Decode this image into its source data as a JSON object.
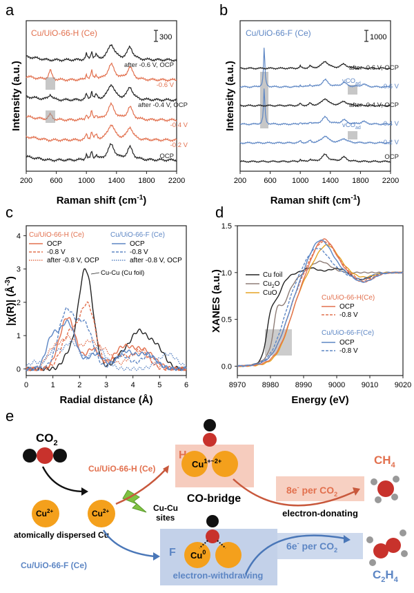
{
  "colors": {
    "orange": "#e2704e",
    "blue": "#5d86c4",
    "black": "#222222",
    "gold": "#e6a323",
    "brown": "#8d7c76",
    "grey": "#aaaaaa",
    "cu": "#f4a01c",
    "red": "#c8322c"
  },
  "panels": {
    "a": "a",
    "b": "b",
    "c": "c",
    "d": "d",
    "e": "e"
  },
  "chart_data": [
    {
      "id": "a",
      "type": "line",
      "title": "Cu/UiO-66-H (Ce)",
      "xlabel": "Raman shift (cm-1)",
      "xlabel_base": "Raman shift (cm",
      "xlabel_sup": "-1",
      "xlabel_end": ")",
      "ylabel": "Intensity (a.u.)",
      "xlim": [
        200,
        2200
      ],
      "xticks": [
        "200",
        "600",
        "1000",
        "1400",
        "1800",
        "2200"
      ],
      "scale_bar": "300",
      "series": [
        {
          "name": "OCP",
          "color": "black",
          "offset": 0
        },
        {
          "name": "-0.2 V",
          "color": "orange",
          "offset": 1
        },
        {
          "name": "-0.4 V",
          "color": "orange",
          "offset": 2
        },
        {
          "name": "after -0.4 V, OCP",
          "color": "black",
          "offset": 3
        },
        {
          "name": "-0.6 V",
          "color": "orange",
          "offset": 4
        },
        {
          "name": "after -0.6 V, OCP",
          "color": "black",
          "offset": 5
        }
      ],
      "peaks_cm": [
        1000,
        1070,
        1130,
        1330,
        1580
      ],
      "cu_o_band_cm": 520
    },
    {
      "id": "b",
      "type": "line",
      "title": "Cu/UiO-66-F (Ce)",
      "xlabel": "Raman shift (cm-1)",
      "xlabel_base": "Raman shift (cm",
      "xlabel_sup": "-1",
      "xlabel_end": ")",
      "ylabel": "Intensity (a.u.)",
      "xlim": [
        200,
        2200
      ],
      "xticks": [
        "200",
        "600",
        "1000",
        "1400",
        "1800",
        "2200"
      ],
      "scale_bar": "1000",
      "series": [
        {
          "name": "OCP",
          "color": "black",
          "offset": 0
        },
        {
          "name": "-0.2 V",
          "color": "blue",
          "offset": 1
        },
        {
          "name": "-0.4 V",
          "color": "blue",
          "offset": 2
        },
        {
          "name": "after -0.4 V, OCP",
          "color": "black",
          "offset": 3
        },
        {
          "name": "-0.6 V",
          "color": "blue",
          "offset": 4
        },
        {
          "name": "after -0.6 V, OCP",
          "color": "black",
          "offset": 5
        }
      ],
      "annot": {
        "vco_base": "vCO",
        "vco_sub": "ad"
      },
      "peak_cm": 520,
      "vco_cm": 1840
    },
    {
      "id": "c",
      "type": "line",
      "xlabel": "Radial distance (Å)",
      "ylabel": "|χ(R)| (Å-3)",
      "ylabel_base": "|χ(R)| (Å",
      "ylabel_sup": "-3",
      "ylabel_end": ")",
      "xlim": [
        0,
        6
      ],
      "ylim": [
        -0.2,
        4.3
      ],
      "xticks": [
        "0",
        "1",
        "2",
        "3",
        "4",
        "5",
        "6"
      ],
      "yticks": [
        "0",
        "1",
        "2",
        "3",
        "4"
      ],
      "legend_h_title": "Cu/UiO-66-H (Ce)",
      "legend_f_title": "Cu/UiO-66-F (Ce)",
      "legend_items": [
        "OCP",
        "-0.8 V",
        "after -0.8 V, OCP"
      ],
      "annotation": "Cu-Cu (Cu foil)",
      "cu_foil_peak": {
        "r": 2.2,
        "value": 3.0
      }
    },
    {
      "id": "d",
      "type": "line",
      "xlabel": "Energy (eV)",
      "ylabel": "XANES (a.u.)",
      "xlim": [
        8970,
        9020
      ],
      "ylim": [
        -0.1,
        1.5
      ],
      "xticks": [
        "8970",
        "8980",
        "8990",
        "9000",
        "9010",
        "9020"
      ],
      "yticks": [
        "0.0",
        "0.5",
        "1.0",
        "1.5"
      ],
      "ref_legend": [
        {
          "name": "Cu foil",
          "color": "black"
        },
        {
          "name_base": "Cu",
          "name_sub": "2",
          "name_end": "O",
          "color": "brown"
        },
        {
          "name": "CuO",
          "color": "gold"
        }
      ],
      "h_title": "Cu/UiO-66-H(Ce)",
      "f_title": "Cu/UiO-66-F(Ce)",
      "series_items": [
        "OCP",
        "-0.8 V"
      ]
    }
  ],
  "scheme": {
    "co2": "CO",
    "co2_sub": "2",
    "cu2plus": "Cu",
    "cu2plus_sup": "2+",
    "dispersed": "atomically dispersed Cu",
    "cucu_1": "Cu-Cu",
    "cucu_2": "sites",
    "h_label": "Cu/UiO-66-H (Ce)",
    "f_label": "Cu/UiO-66-F (Ce)",
    "H": "H",
    "F": "F",
    "cu_mixed": "Cu",
    "cu_mixed_sup": "1+~2+",
    "cu0": "Cu",
    "cu0_sup": "0",
    "cobridge": "CO-bridge",
    "donating": "electron-donating",
    "withdrawing": "electron-withdrawing",
    "e8": "8e",
    "e8_sup": "-",
    "e8_end": " per CO",
    "e8_sub": "2",
    "e6": "6e",
    "e6_sup": "-",
    "e6_end": " per CO",
    "e6_sub": "2",
    "ch4": "CH",
    "ch4_sub": "4",
    "c2h4": "C",
    "c2h4_sub1": "2",
    "c2h4_mid": "H",
    "c2h4_sub2": "4"
  }
}
